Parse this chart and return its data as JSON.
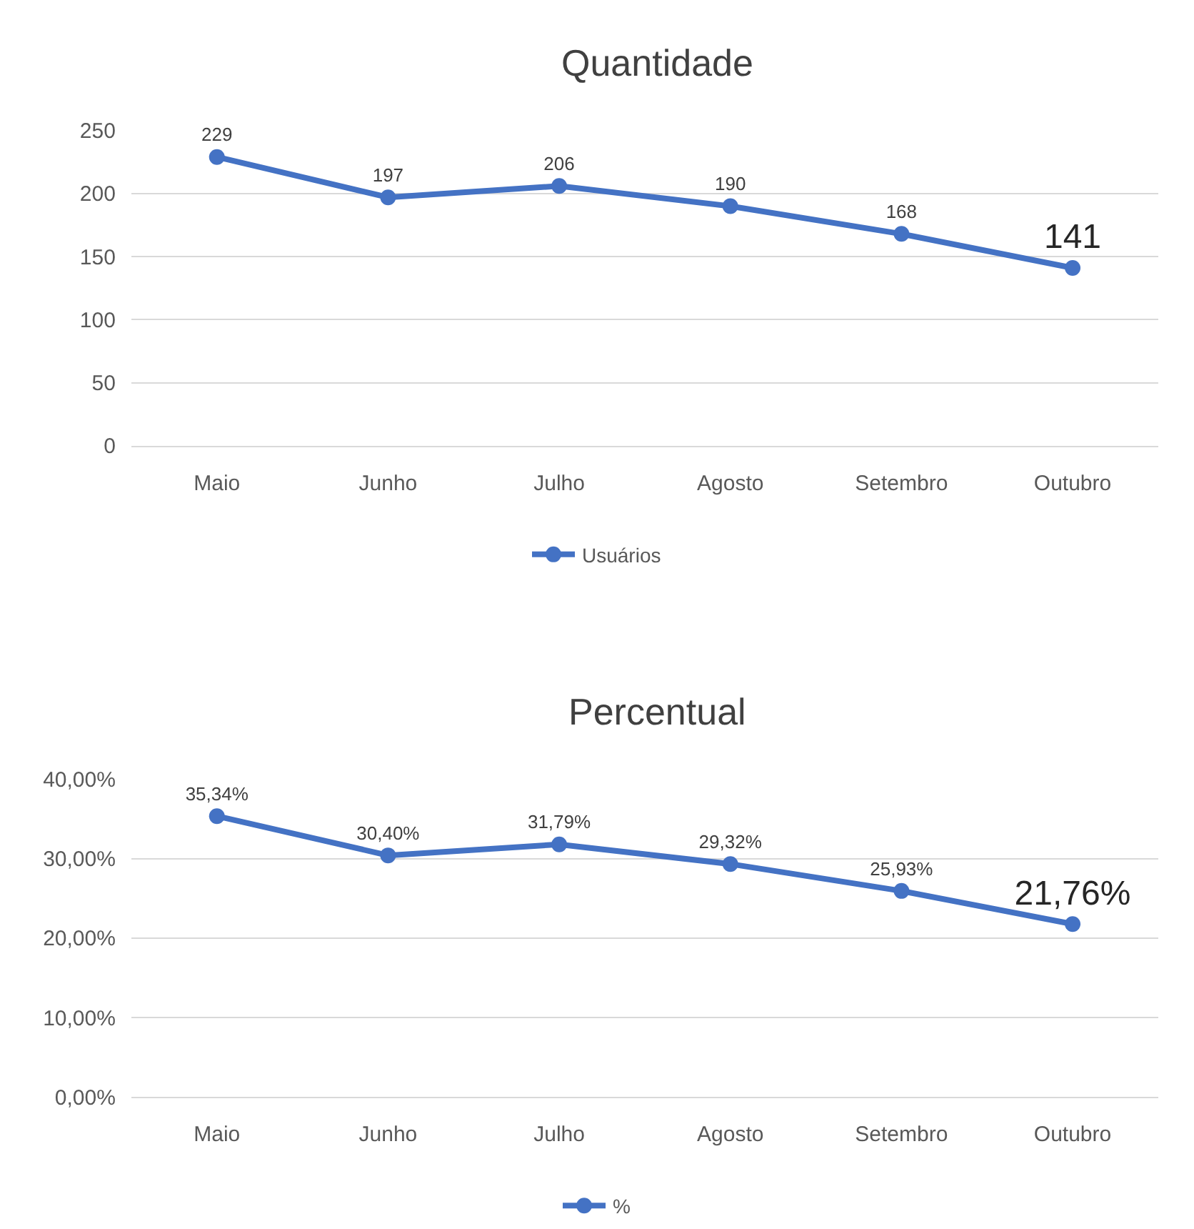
{
  "chart_data": [
    {
      "type": "line",
      "title": "Quantidade",
      "categories": [
        "Maio",
        "Junho",
        "Julho",
        "Agosto",
        "Setembro",
        "Outubro"
      ],
      "series": [
        {
          "name": "Usuários",
          "color": "#4472c4",
          "values": [
            229,
            197,
            206,
            190,
            168,
            141
          ],
          "value_labels": [
            "229",
            "197",
            "206",
            "190",
            "168",
            "141"
          ]
        }
      ],
      "ylim": [
        0,
        250
      ],
      "yticks": [
        0,
        50,
        100,
        150,
        200,
        250
      ],
      "grid": "y",
      "legend": "bottom",
      "marker": "circle",
      "line_style": "solid"
    },
    {
      "type": "line",
      "title": "Percentual",
      "categories": [
        "Maio",
        "Junho",
        "Julho",
        "Agosto",
        "Setembro",
        "Outubro"
      ],
      "series": [
        {
          "name": "%",
          "color": "#4472c4",
          "values": [
            35.34,
            30.4,
            31.79,
            29.32,
            25.93,
            21.76
          ],
          "value_labels": [
            "35,34%",
            "30,40%",
            "31,79%",
            "29,32%",
            "25,93%",
            "21,76%"
          ]
        }
      ],
      "ylim": [
        0,
        40
      ],
      "yticks": [
        {
          "value": 0,
          "label": "0,00%"
        },
        {
          "value": 10,
          "label": "10,00%"
        },
        {
          "value": 20,
          "label": "20,00%"
        },
        {
          "value": 30,
          "label": "30,00%"
        },
        {
          "value": 40,
          "label": "40,00%"
        }
      ],
      "grid": "y",
      "legend": "bottom",
      "marker": "circle",
      "line_style": "solid"
    }
  ]
}
